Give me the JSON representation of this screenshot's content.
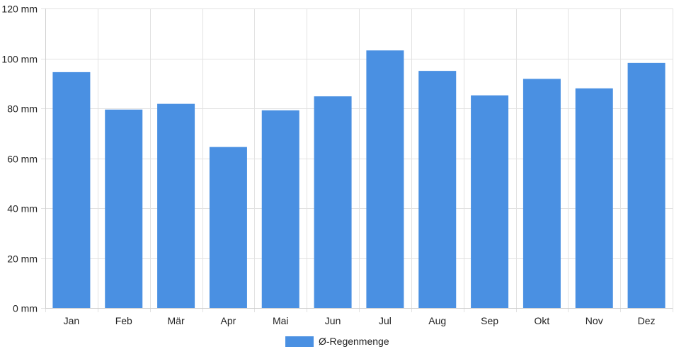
{
  "chart_data": {
    "type": "bar",
    "title": "",
    "xlabel": "",
    "ylabel": "",
    "categories": [
      "Jan",
      "Feb",
      "Mär",
      "Apr",
      "Mai",
      "Jun",
      "Jul",
      "Aug",
      "Sep",
      "Okt",
      "Nov",
      "Dez"
    ],
    "series": [
      {
        "name": "Ø-Regenmenge",
        "values": [
          94.5,
          79.5,
          81.8,
          64.5,
          79.2,
          84.8,
          103.2,
          95.0,
          85.2,
          91.8,
          88.0,
          98.2
        ]
      }
    ],
    "ylim": [
      0,
      120
    ],
    "yticks": [
      0,
      20,
      40,
      60,
      80,
      100,
      120
    ],
    "yunit": "mm",
    "ytick_labels": [
      "0 mm",
      "20 mm",
      "40 mm",
      "60 mm",
      "80 mm",
      "100 mm",
      "120 mm"
    ],
    "grid": true,
    "legend": "bottom-center",
    "colors": {
      "bar": "#4a90e2",
      "grid": "#e2e2e2"
    }
  }
}
